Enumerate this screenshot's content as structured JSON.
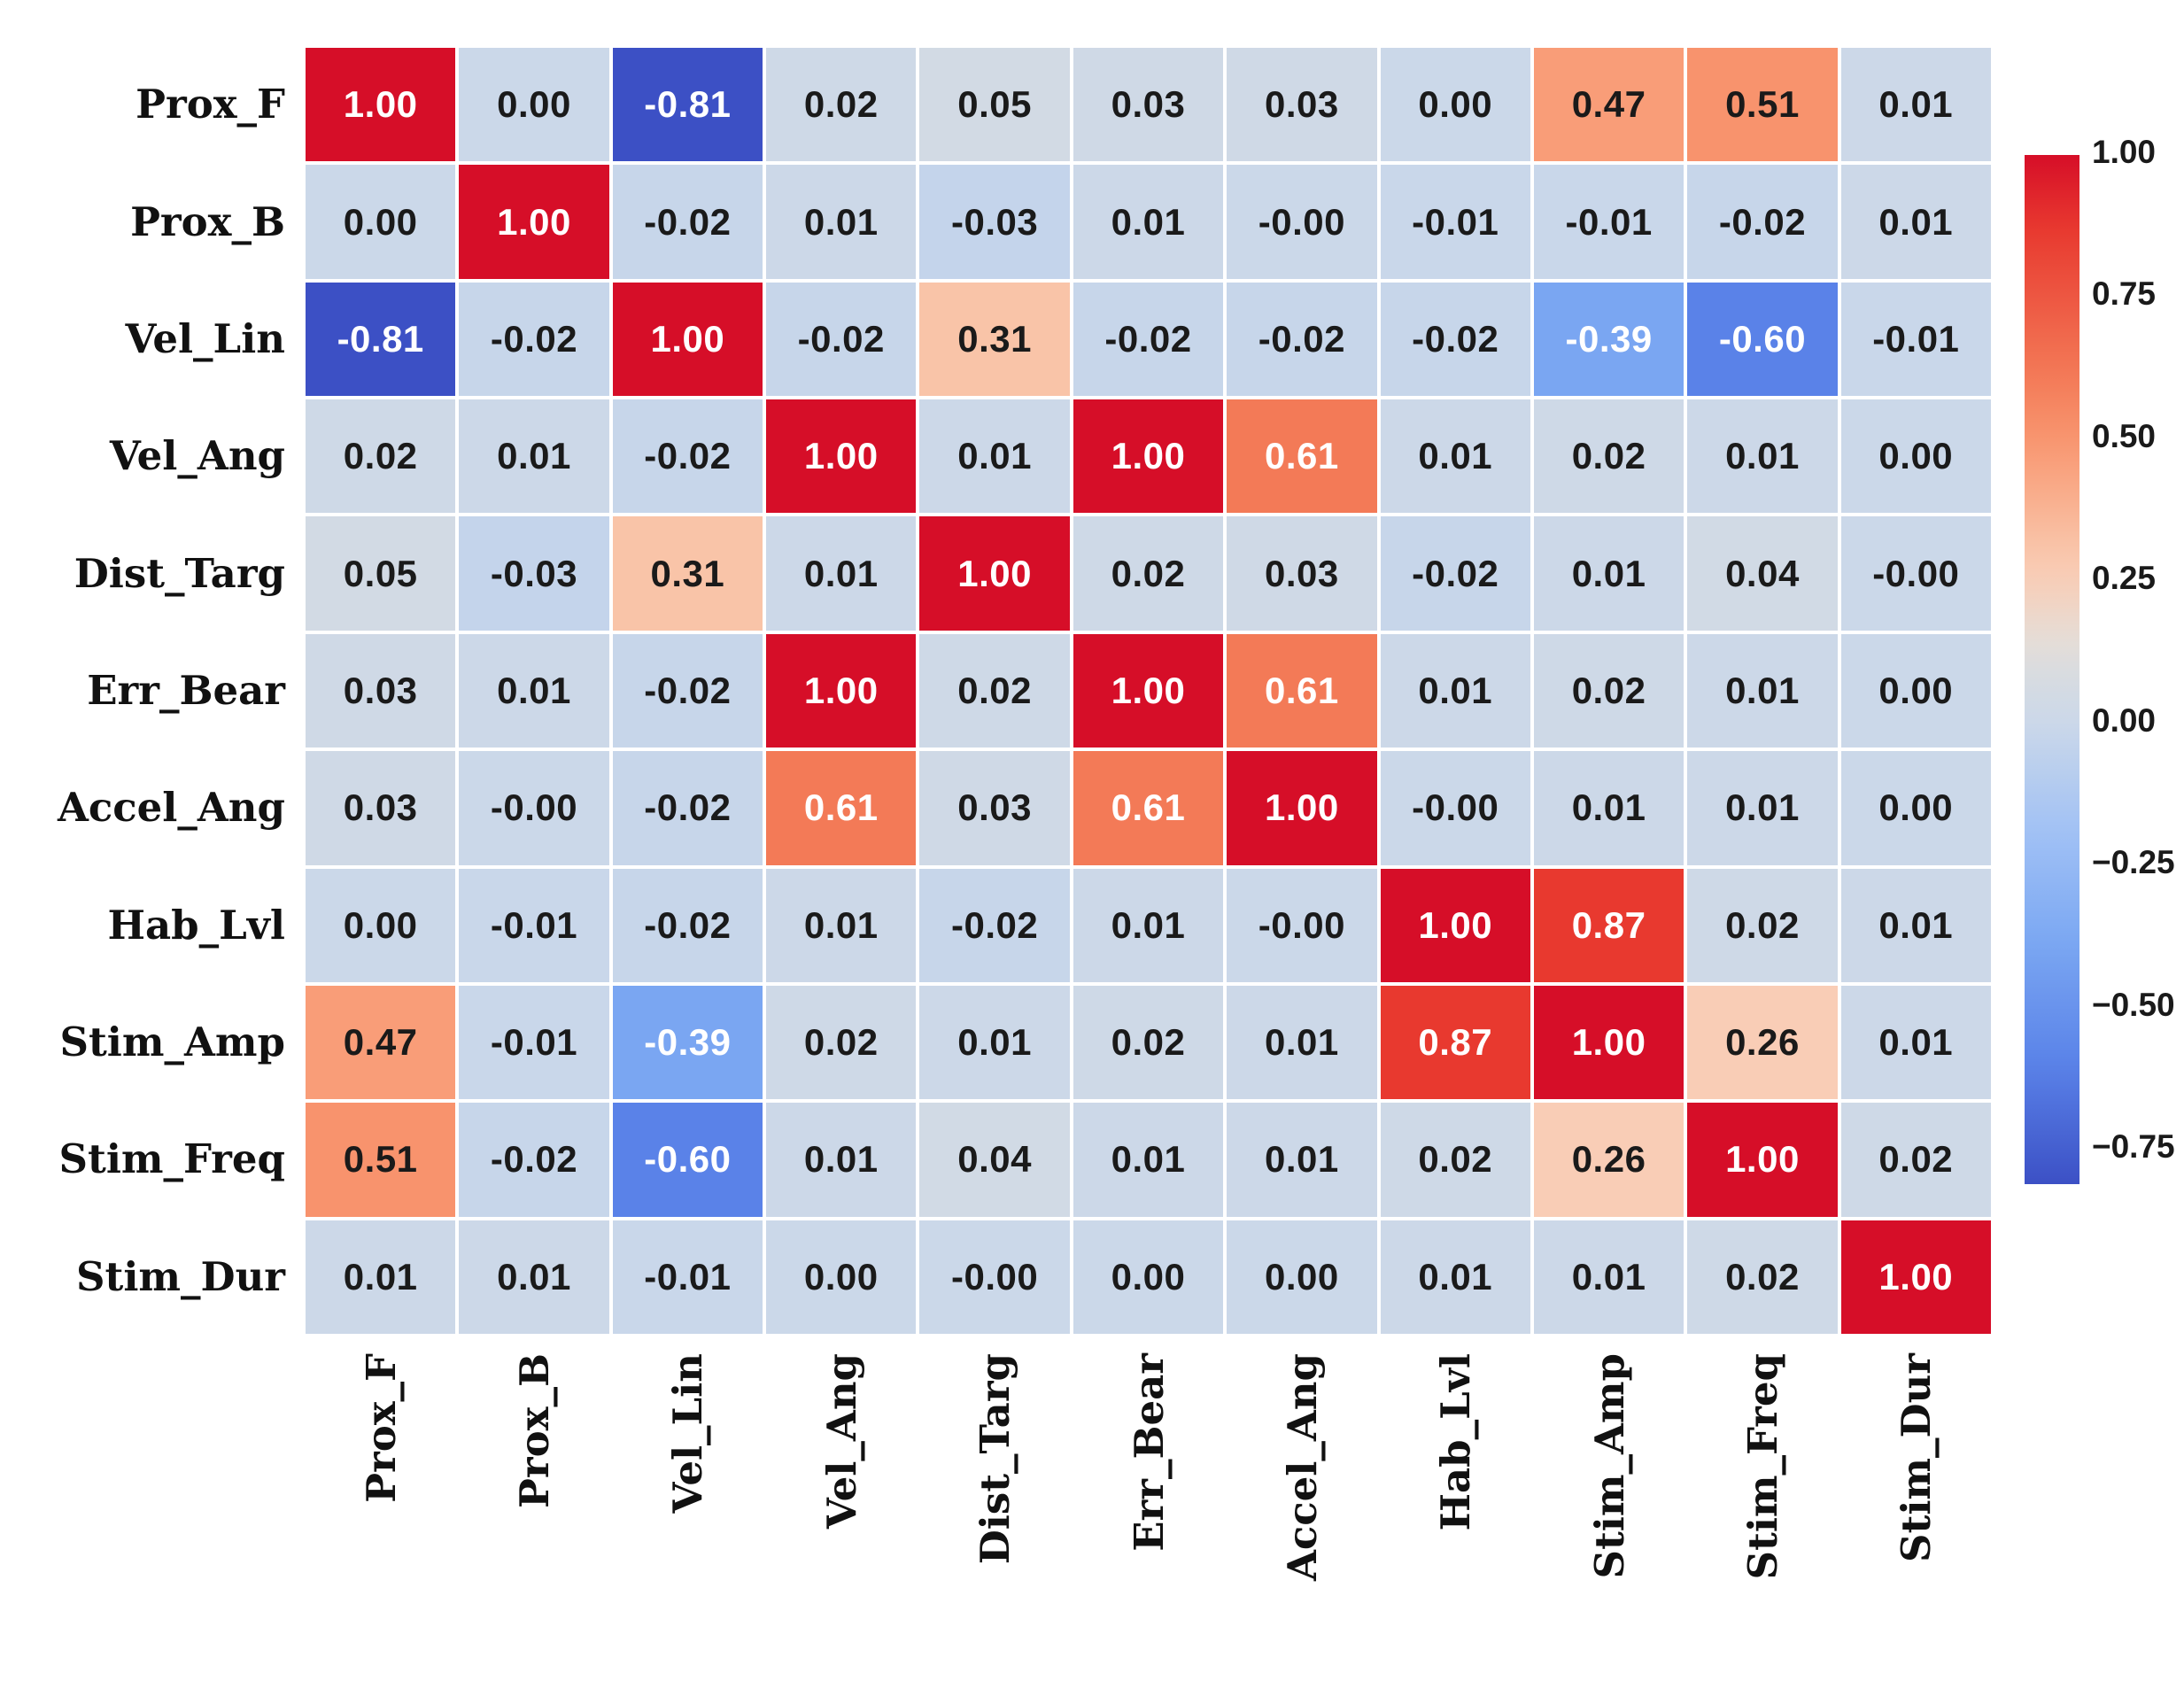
{
  "figure": {
    "background": "#ffffff",
    "description": "Correlation matrix heatmap with annotated coefficients and vertical colorbar"
  },
  "chart_data": {
    "type": "heatmap",
    "title": "",
    "xlabel": "",
    "ylabel": "",
    "categories": [
      "Prox_F",
      "Prox_B",
      "Vel_Lin",
      "Vel_Ang",
      "Dist_Targ",
      "Err_Bear",
      "Accel_Ang",
      "Hab_Lvl",
      "Stim_Amp",
      "Stim_Freq",
      "Stim_Dur"
    ],
    "matrix": [
      [
        "1.00",
        "0.00",
        "-0.81",
        "0.02",
        "0.05",
        "0.03",
        "0.03",
        "0.00",
        "0.47",
        "0.51",
        "0.01"
      ],
      [
        "0.00",
        "1.00",
        "-0.02",
        "0.01",
        "-0.03",
        "0.01",
        "-0.00",
        "-0.01",
        "-0.01",
        "-0.02",
        "0.01"
      ],
      [
        "-0.81",
        "-0.02",
        "1.00",
        "-0.02",
        "0.31",
        "-0.02",
        "-0.02",
        "-0.02",
        "-0.39",
        "-0.60",
        "-0.01"
      ],
      [
        "0.02",
        "0.01",
        "-0.02",
        "1.00",
        "0.01",
        "1.00",
        "0.61",
        "0.01",
        "0.02",
        "0.01",
        "0.00"
      ],
      [
        "0.05",
        "-0.03",
        "0.31",
        "0.01",
        "1.00",
        "0.02",
        "0.03",
        "-0.02",
        "0.01",
        "0.04",
        "-0.00"
      ],
      [
        "0.03",
        "0.01",
        "-0.02",
        "1.00",
        "0.02",
        "1.00",
        "0.61",
        "0.01",
        "0.02",
        "0.01",
        "0.00"
      ],
      [
        "0.03",
        "-0.00",
        "-0.02",
        "0.61",
        "0.03",
        "0.61",
        "1.00",
        "-0.00",
        "0.01",
        "0.01",
        "0.00"
      ],
      [
        "0.00",
        "-0.01",
        "-0.02",
        "0.01",
        "-0.02",
        "0.01",
        "-0.00",
        "1.00",
        "0.87",
        "0.02",
        "0.01"
      ],
      [
        "0.47",
        "-0.01",
        "-0.39",
        "0.02",
        "0.01",
        "0.02",
        "0.01",
        "0.87",
        "1.00",
        "0.26",
        "0.01"
      ],
      [
        "0.51",
        "-0.02",
        "-0.60",
        "0.01",
        "0.04",
        "0.01",
        "0.01",
        "0.02",
        "0.26",
        "1.00",
        "0.02"
      ],
      [
        "0.01",
        "0.01",
        "-0.01",
        "0.00",
        "-0.00",
        "0.00",
        "0.00",
        "0.01",
        "0.01",
        "0.02",
        "1.00"
      ]
    ],
    "vmin": -0.81,
    "vmax": 1.0,
    "grid_line_color": "#ffffff",
    "annotation_colors": {
      "on_dark": "#ffffff",
      "on_light": "#1a1a1a"
    },
    "colormap": {
      "name": "coolwarm",
      "stops": [
        [
          0.0,
          "#3c50c5"
        ],
        [
          0.116,
          "#5a82e8"
        ],
        [
          0.232,
          "#7aa6f2"
        ],
        [
          0.34,
          "#a0c1f5"
        ],
        [
          0.4475,
          "#cbd8e9"
        ],
        [
          0.49,
          "#d6dbe2"
        ],
        [
          0.53,
          "#e6ddd6"
        ],
        [
          0.591,
          "#f9cdb6"
        ],
        [
          0.619,
          "#f9c4a8"
        ],
        [
          0.707,
          "#f99d78"
        ],
        [
          0.729,
          "#f8936d"
        ],
        [
          0.785,
          "#f37a57"
        ],
        [
          0.928,
          "#e8392f"
        ],
        [
          1.0,
          "#d60e28"
        ]
      ]
    },
    "colorbar": {
      "position": "right",
      "tick_labels": [
        "1.00",
        "0.75",
        "0.50",
        "0.25",
        "0.00",
        "−0.25",
        "−0.50",
        "−0.75"
      ],
      "tick_values": [
        1.0,
        0.75,
        0.5,
        0.25,
        0.0,
        -0.25,
        -0.5,
        -0.75
      ]
    }
  }
}
